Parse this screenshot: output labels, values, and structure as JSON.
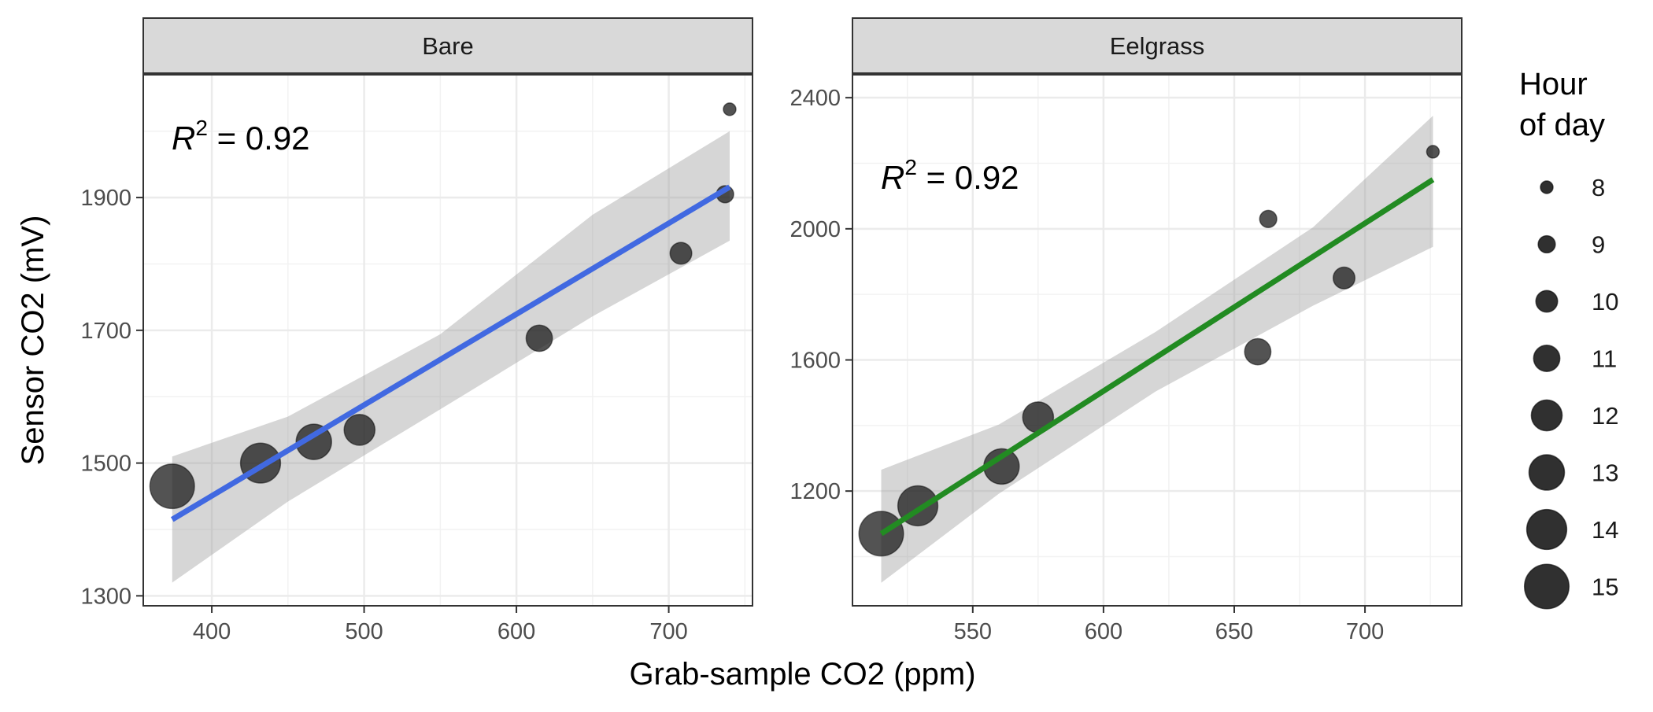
{
  "figure": {
    "xlabel": "Grab-sample CO2 (ppm)",
    "ylabel": "Sensor CO2 (mV)"
  },
  "legend": {
    "title_line1": "Hour",
    "title_line2": " of day",
    "placement": "right",
    "items": [
      {
        "label": "8",
        "hour": 8
      },
      {
        "label": "9",
        "hour": 9
      },
      {
        "label": "10",
        "hour": 10
      },
      {
        "label": "11",
        "hour": 11
      },
      {
        "label": "12",
        "hour": 12
      },
      {
        "label": "13",
        "hour": 13
      },
      {
        "label": "14",
        "hour": 14
      },
      {
        "label": "15",
        "hour": 15
      }
    ]
  },
  "chart_data": [
    {
      "type": "scatter",
      "panel_title": "Bare",
      "annotation": {
        "r_label": "R",
        "r_sup": "2",
        "r_value": " = 0.92"
      },
      "fit_color": "#4169E1",
      "point_color": "#1a1a1a",
      "grid": true,
      "xlim": [
        355,
        755
      ],
      "ylim": [
        1285,
        2085
      ],
      "x_ticks": [
        400,
        500,
        600,
        700
      ],
      "x_tick_labels": [
        "400",
        "500",
        "600",
        "700"
      ],
      "y_ticks": [
        1300,
        1500,
        1700,
        1900
      ],
      "y_tick_labels": [
        "1300",
        "1500",
        "1700",
        "1900"
      ],
      "points": [
        {
          "x": 374,
          "y": 1465,
          "hour": 15
        },
        {
          "x": 432,
          "y": 1500,
          "hour": 14
        },
        {
          "x": 467,
          "y": 1532,
          "hour": 13
        },
        {
          "x": 497,
          "y": 1550,
          "hour": 12
        },
        {
          "x": 615,
          "y": 1688,
          "hour": 11
        },
        {
          "x": 708,
          "y": 1816,
          "hour": 10
        },
        {
          "x": 737,
          "y": 1905,
          "hour": 9
        },
        {
          "x": 740,
          "y": 2033,
          "hour": 8
        }
      ],
      "fit": {
        "x": [
          374,
          740
        ],
        "y": [
          1415,
          1916
        ]
      },
      "ci": {
        "x": [
          374,
          450,
          550,
          650,
          740
        ],
        "lower": [
          1320,
          1442,
          1581,
          1721,
          1835
        ],
        "upper": [
          1510,
          1570,
          1694,
          1874,
          2000
        ]
      }
    },
    {
      "type": "scatter",
      "panel_title": "Eelgrass",
      "annotation": {
        "r_label": "R",
        "r_sup": "2",
        "r_value": " = 0.92"
      },
      "fit_color": "#228B22",
      "point_color": "#1a1a1a",
      "grid": true,
      "xlim": [
        504,
        737
      ],
      "ylim": [
        850,
        2470
      ],
      "x_ticks": [
        550,
        600,
        650,
        700
      ],
      "x_tick_labels": [
        "550",
        "600",
        "650",
        "700"
      ],
      "y_ticks": [
        1200,
        1600,
        2000,
        2400
      ],
      "y_tick_labels": [
        "1200",
        "1600",
        "2000",
        "2400"
      ],
      "points": [
        {
          "x": 515,
          "y": 1070,
          "hour": 15
        },
        {
          "x": 529,
          "y": 1155,
          "hour": 14
        },
        {
          "x": 561,
          "y": 1275,
          "hour": 13
        },
        {
          "x": 575,
          "y": 1425,
          "hour": 12
        },
        {
          "x": 659,
          "y": 1625,
          "hour": 11
        },
        {
          "x": 663,
          "y": 2030,
          "hour": 9
        },
        {
          "x": 692,
          "y": 1850,
          "hour": 10
        },
        {
          "x": 726,
          "y": 2235,
          "hour": 8
        }
      ],
      "fit": {
        "x": [
          515,
          726
        ],
        "y": [
          1070,
          2150
        ]
      },
      "ci": {
        "x": [
          515,
          560,
          620,
          680,
          726
        ],
        "lower": [
          920,
          1192,
          1504,
          1765,
          1945
        ],
        "upper": [
          1265,
          1403,
          1686,
          2004,
          2345
        ]
      }
    }
  ]
}
